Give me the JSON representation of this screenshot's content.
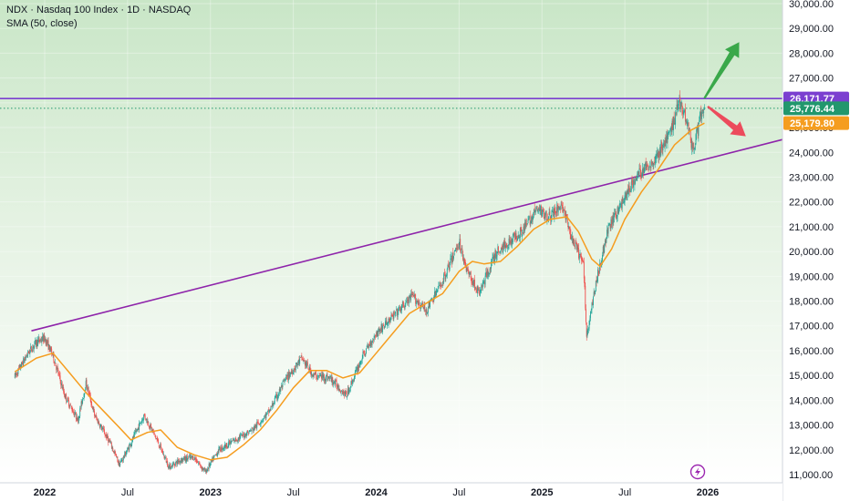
{
  "legend": {
    "title": "NDX · Nasdaq 100 Index · 1D · NASDAQ",
    "indicator": "SMA (50, close)"
  },
  "colors": {
    "up": "#26a69a",
    "down": "#ef5350",
    "sma": "#f59d1f",
    "trendline": "#8e24aa",
    "resistance": "#7b3fd0",
    "last_price": "#22976d",
    "arrow_up": "#3aa84a",
    "arrow_down": "#ec4b5c"
  },
  "price_tags": {
    "resistance": "26,171.77",
    "last": "25,776.44",
    "sma": "25,179.80"
  },
  "chart_data": {
    "type": "candlestick",
    "title": "NDX · Nasdaq 100 Index · 1D · NASDAQ",
    "ylim": [
      10900,
      30300
    ],
    "yticks": [
      "30,000.00",
      "29,000.00",
      "28,000.00",
      "27,000.00",
      "26,000.00",
      "25,000.00",
      "24,000.00",
      "23,000.00",
      "22,000.00",
      "21,000.00",
      "20,000.00",
      "19,000.00",
      "18,000.00",
      "17,000.00",
      "16,000.00",
      "15,000.00",
      "14,000.00",
      "13,000.00",
      "12,000.00",
      "11,000.00"
    ],
    "ytick_values": [
      30000,
      29000,
      28000,
      27000,
      26000,
      25000,
      24000,
      23000,
      22000,
      21000,
      20000,
      19000,
      18000,
      17000,
      16000,
      15000,
      14000,
      13000,
      12000,
      11000
    ],
    "xlim": [
      2021.82,
      2026.5
    ],
    "xticks": [
      {
        "label": "2022",
        "t": 2022.0,
        "year": true
      },
      {
        "label": "Jul",
        "t": 2022.5,
        "year": false
      },
      {
        "label": "2023",
        "t": 2023.0,
        "year": true
      },
      {
        "label": "Jul",
        "t": 2023.5,
        "year": false
      },
      {
        "label": "2024",
        "t": 2024.0,
        "year": true
      },
      {
        "label": "Jul",
        "t": 2024.5,
        "year": false
      },
      {
        "label": "2025",
        "t": 2025.0,
        "year": true
      },
      {
        "label": "Jul",
        "t": 2025.5,
        "year": false
      },
      {
        "label": "2026",
        "t": 2026.0,
        "year": true
      }
    ],
    "price_path": [
      [
        2021.82,
        14950
      ],
      [
        2021.9,
        15900
      ],
      [
        2021.95,
        16350
      ],
      [
        2022.0,
        16500
      ],
      [
        2022.05,
        15800
      ],
      [
        2022.12,
        14200
      ],
      [
        2022.2,
        13200
      ],
      [
        2022.25,
        14700
      ],
      [
        2022.3,
        13400
      ],
      [
        2022.4,
        12200
      ],
      [
        2022.45,
        11400
      ],
      [
        2022.5,
        12000
      ],
      [
        2022.6,
        13400
      ],
      [
        2022.67,
        12500
      ],
      [
        2022.75,
        11300
      ],
      [
        2022.82,
        11600
      ],
      [
        2022.9,
        11700
      ],
      [
        2022.97,
        11100
      ],
      [
        2023.05,
        12000
      ],
      [
        2023.15,
        12400
      ],
      [
        2023.25,
        12800
      ],
      [
        2023.35,
        13500
      ],
      [
        2023.45,
        14800
      ],
      [
        2023.55,
        15700
      ],
      [
        2023.62,
        15000
      ],
      [
        2023.72,
        14900
      ],
      [
        2023.82,
        14200
      ],
      [
        2023.92,
        15800
      ],
      [
        2024.0,
        16700
      ],
      [
        2024.12,
        17500
      ],
      [
        2024.22,
        18200
      ],
      [
        2024.3,
        17600
      ],
      [
        2024.4,
        18800
      ],
      [
        2024.5,
        20400
      ],
      [
        2024.55,
        19200
      ],
      [
        2024.62,
        18300
      ],
      [
        2024.72,
        19900
      ],
      [
        2024.82,
        20500
      ],
      [
        2024.9,
        21000
      ],
      [
        2024.97,
        21700
      ],
      [
        2025.05,
        21400
      ],
      [
        2025.12,
        21900
      ],
      [
        2025.18,
        20500
      ],
      [
        2025.25,
        19500
      ],
      [
        2025.27,
        16600
      ],
      [
        2025.33,
        18900
      ],
      [
        2025.4,
        20900
      ],
      [
        2025.5,
        22200
      ],
      [
        2025.58,
        23100
      ],
      [
        2025.68,
        23700
      ],
      [
        2025.77,
        24700
      ],
      [
        2025.83,
        26100
      ],
      [
        2025.88,
        25200
      ],
      [
        2025.91,
        24000
      ],
      [
        2025.95,
        25300
      ],
      [
        2025.98,
        25780
      ]
    ],
    "sma_path": [
      [
        2021.82,
        15150
      ],
      [
        2021.95,
        15700
      ],
      [
        2022.05,
        15900
      ],
      [
        2022.15,
        15100
      ],
      [
        2022.25,
        14300
      ],
      [
        2022.35,
        13600
      ],
      [
        2022.45,
        12900
      ],
      [
        2022.52,
        12400
      ],
      [
        2022.62,
        12700
      ],
      [
        2022.7,
        12800
      ],
      [
        2022.8,
        12100
      ],
      [
        2022.9,
        11800
      ],
      [
        2023.0,
        11600
      ],
      [
        2023.1,
        11700
      ],
      [
        2023.2,
        12200
      ],
      [
        2023.3,
        12800
      ],
      [
        2023.4,
        13600
      ],
      [
        2023.5,
        14500
      ],
      [
        2023.6,
        15200
      ],
      [
        2023.7,
        15200
      ],
      [
        2023.8,
        14900
      ],
      [
        2023.9,
        15100
      ],
      [
        2024.0,
        15900
      ],
      [
        2024.1,
        16700
      ],
      [
        2024.2,
        17500
      ],
      [
        2024.3,
        17900
      ],
      [
        2024.4,
        18300
      ],
      [
        2024.5,
        19200
      ],
      [
        2024.58,
        19600
      ],
      [
        2024.65,
        19500
      ],
      [
        2024.75,
        19600
      ],
      [
        2024.85,
        20200
      ],
      [
        2024.95,
        20900
      ],
      [
        2025.05,
        21300
      ],
      [
        2025.15,
        21400
      ],
      [
        2025.22,
        20800
      ],
      [
        2025.3,
        19700
      ],
      [
        2025.35,
        19400
      ],
      [
        2025.42,
        20100
      ],
      [
        2025.5,
        21300
      ],
      [
        2025.6,
        22400
      ],
      [
        2025.7,
        23300
      ],
      [
        2025.8,
        24300
      ],
      [
        2025.9,
        24900
      ],
      [
        2025.98,
        25180
      ]
    ],
    "trendline": {
      "from": [
        2021.92,
        16800
      ],
      "to": [
        2026.5,
        24600
      ]
    },
    "resistance": 26171.77,
    "last_price": 25776.44,
    "sma_last": 25179.8
  }
}
